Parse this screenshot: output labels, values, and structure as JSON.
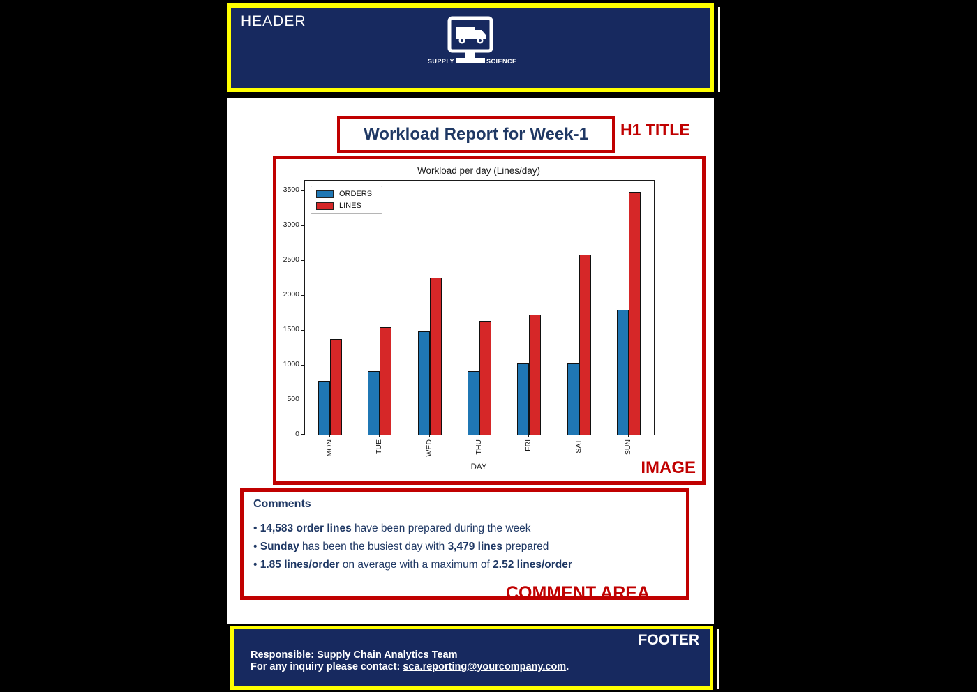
{
  "header": {
    "label": "HEADER",
    "logo": {
      "left_text": "SUPPLY",
      "right_text": "SCIENCE"
    }
  },
  "title": {
    "text": "Workload Report for Week-1",
    "annotation": "H1 TITLE"
  },
  "image_annotation": "IMAGE",
  "chart_data": {
    "type": "bar",
    "title": "Workload per day (Lines/day)",
    "categories": [
      "MON",
      "TUE",
      "WED",
      "THU",
      "FRI",
      "SAT",
      "SUN"
    ],
    "series": [
      {
        "name": "ORDERS",
        "color": "#1f77b4",
        "values": [
          775,
          910,
          1480,
          910,
          1020,
          1025,
          1790
        ]
      },
      {
        "name": "LINES",
        "color": "#d62728",
        "values": [
          1370,
          1545,
          2250,
          1633,
          1721,
          2585,
          3479
        ]
      }
    ],
    "xlabel": "DAY",
    "ylabel": "",
    "ylim": [
      0,
      3500
    ],
    "ytick_step": 500,
    "grid": false,
    "legend_position": "upper left",
    "xtick_rotation": 90
  },
  "comments": {
    "heading": "Comments",
    "items": [
      [
        {
          "t": "14,583 order lines",
          "b": true
        },
        {
          "t": " have been prepared during the week",
          "b": false
        }
      ],
      [
        {
          "t": "Sunday",
          "b": true
        },
        {
          "t": " has been the busiest day with ",
          "b": false
        },
        {
          "t": "3,479 lines",
          "b": true
        },
        {
          "t": " prepared",
          "b": false
        }
      ],
      [
        {
          "t": "1.85 lines/order",
          "b": true
        },
        {
          "t": " on average with a maximum of ",
          "b": false
        },
        {
          "t": "2.52 lines/order",
          "b": true
        }
      ]
    ],
    "annotation": "COMMENT AREA"
  },
  "footer": {
    "label": "FOOTER",
    "line1": "Responsible: Supply Chain Analytics Team",
    "line2_prefix": "For any inquiry please contact: ",
    "email": "sca.reporting@yourcompany.com",
    "line2_suffix": "."
  },
  "colors": {
    "navy_panel": "#17295f",
    "yellow_border": "#ffff00",
    "red_border": "#c00000",
    "title_text": "#1f3864",
    "bar_blue": "#1f77b4",
    "bar_red": "#d62728"
  }
}
